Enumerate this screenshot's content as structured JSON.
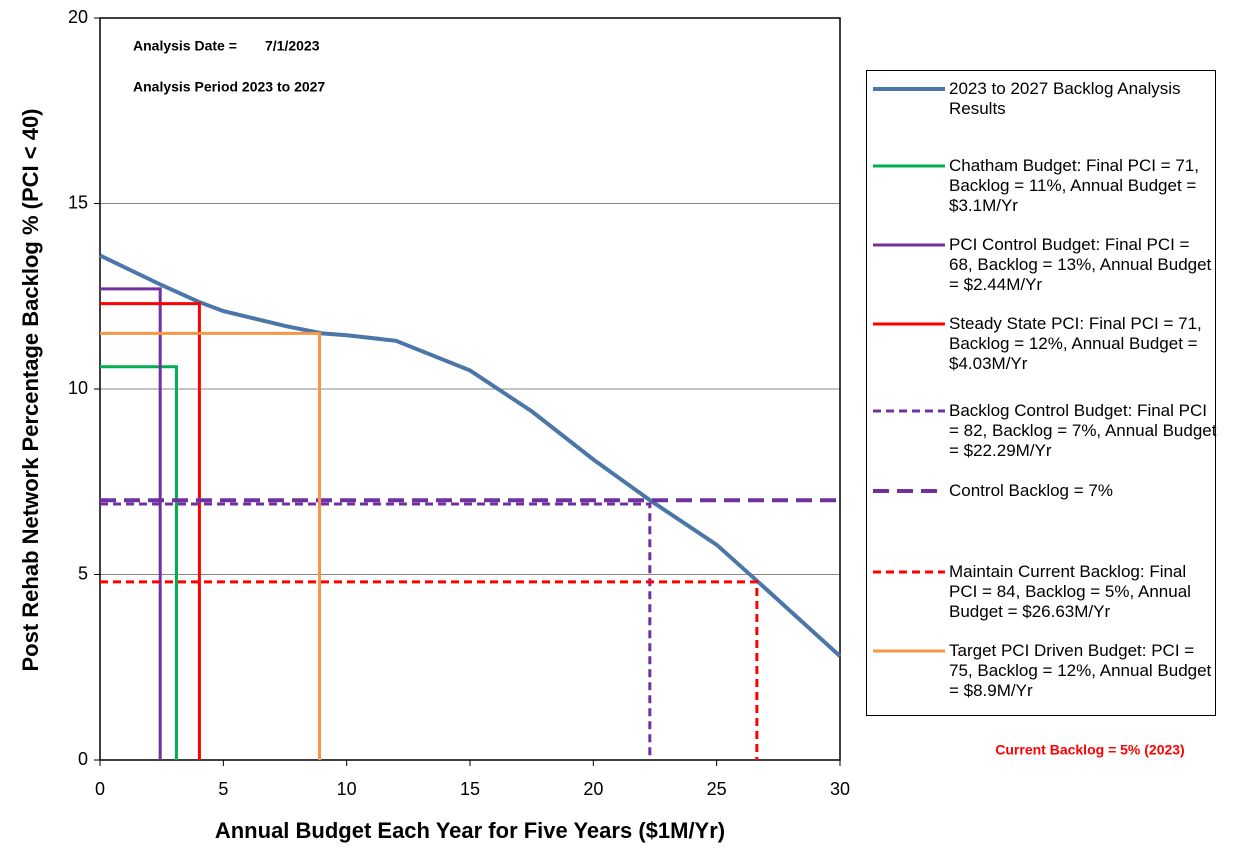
{
  "chart_data": {
    "type": "line",
    "xlabel": "Annual Budget Each Year for Five Years ($1M/Yr)",
    "ylabel": "Post Rehab Network Percentage Backlog % (PCI < 40)",
    "xlim": [
      0,
      30
    ],
    "xticks": [
      0,
      5,
      10,
      15,
      20,
      25,
      30
    ],
    "ylim": [
      0,
      20
    ],
    "yticks": [
      0,
      5,
      10,
      15,
      20
    ],
    "grid": true,
    "annotations": [
      "Analysis Date =",
      "7/1/2023",
      "Analysis Period 2023 to 2027",
      "Current Backlog = 5% (2023)"
    ],
    "series": [
      {
        "name": "2023 to 2027 Backlog Analysis Results",
        "color": "#4a76a8",
        "linewidth": 4,
        "linestyle": "solid",
        "x": [
          0,
          2.5,
          4,
          5,
          7.5,
          9,
          10,
          12,
          15,
          17.5,
          20,
          22.3,
          25,
          26.6,
          30
        ],
        "values": [
          13.6,
          12.8,
          12.35,
          12.1,
          11.7,
          11.5,
          11.45,
          11.3,
          10.5,
          9.4,
          8.1,
          7.0,
          5.8,
          4.85,
          2.8
        ]
      },
      {
        "name": "Chatham Budget: Final PCI = 71, Backlog = 11%, Annual Budget = $3.1M/Yr",
        "color": "#00b050",
        "linewidth": 3,
        "linestyle": "solid",
        "x": [
          0,
          3.1,
          3.1
        ],
        "values": [
          10.6,
          10.6,
          0
        ]
      },
      {
        "name": "PCI Control Budget: Final PCI = 68, Backlog = 13%, Annual Budget = $2.44M/Yr",
        "color": "#7030a0",
        "linewidth": 3,
        "linestyle": "solid",
        "x": [
          0,
          2.44,
          2.44
        ],
        "values": [
          12.7,
          12.7,
          0
        ]
      },
      {
        "name": "Steady State PCI: Final PCI = 71, Backlog = 12%, Annual Budget = $4.03M/Yr",
        "color": "#ff0000",
        "linewidth": 3,
        "linestyle": "solid",
        "x": [
          0,
          4.03,
          4.03
        ],
        "values": [
          12.3,
          12.3,
          0
        ]
      },
      {
        "name": "Backlog Control Budget: Final PCI = 82, Backlog = 7%, Annual Budget = $22.29M/Yr",
        "color": "#7030a0",
        "linewidth": 3,
        "linestyle": "dashed",
        "x": [
          0,
          22.29,
          22.29
        ],
        "values": [
          6.9,
          6.9,
          0
        ]
      },
      {
        "name": "Control Backlog = 7%",
        "color": "#7030a0",
        "linewidth": 4,
        "linestyle": "dashed",
        "x": [
          0,
          30
        ],
        "values": [
          7,
          7
        ]
      },
      {
        "name": "Maintain Current Backlog: Final PCI = 84, Backlog = 5%, Annual Budget = $26.63M/Yr",
        "color": "#ff0000",
        "linewidth": 3,
        "linestyle": "dashed",
        "x": [
          0,
          26.63,
          26.63
        ],
        "values": [
          4.8,
          4.8,
          0
        ]
      },
      {
        "name": "Target PCI Driven Budget: PCI = 75, Backlog = 12%, Annual Budget = $8.9M/Yr",
        "color": "#f79646",
        "linewidth": 3,
        "linestyle": "solid",
        "x": [
          0,
          8.9,
          8.9
        ],
        "values": [
          11.5,
          11.5,
          0
        ]
      }
    ]
  }
}
